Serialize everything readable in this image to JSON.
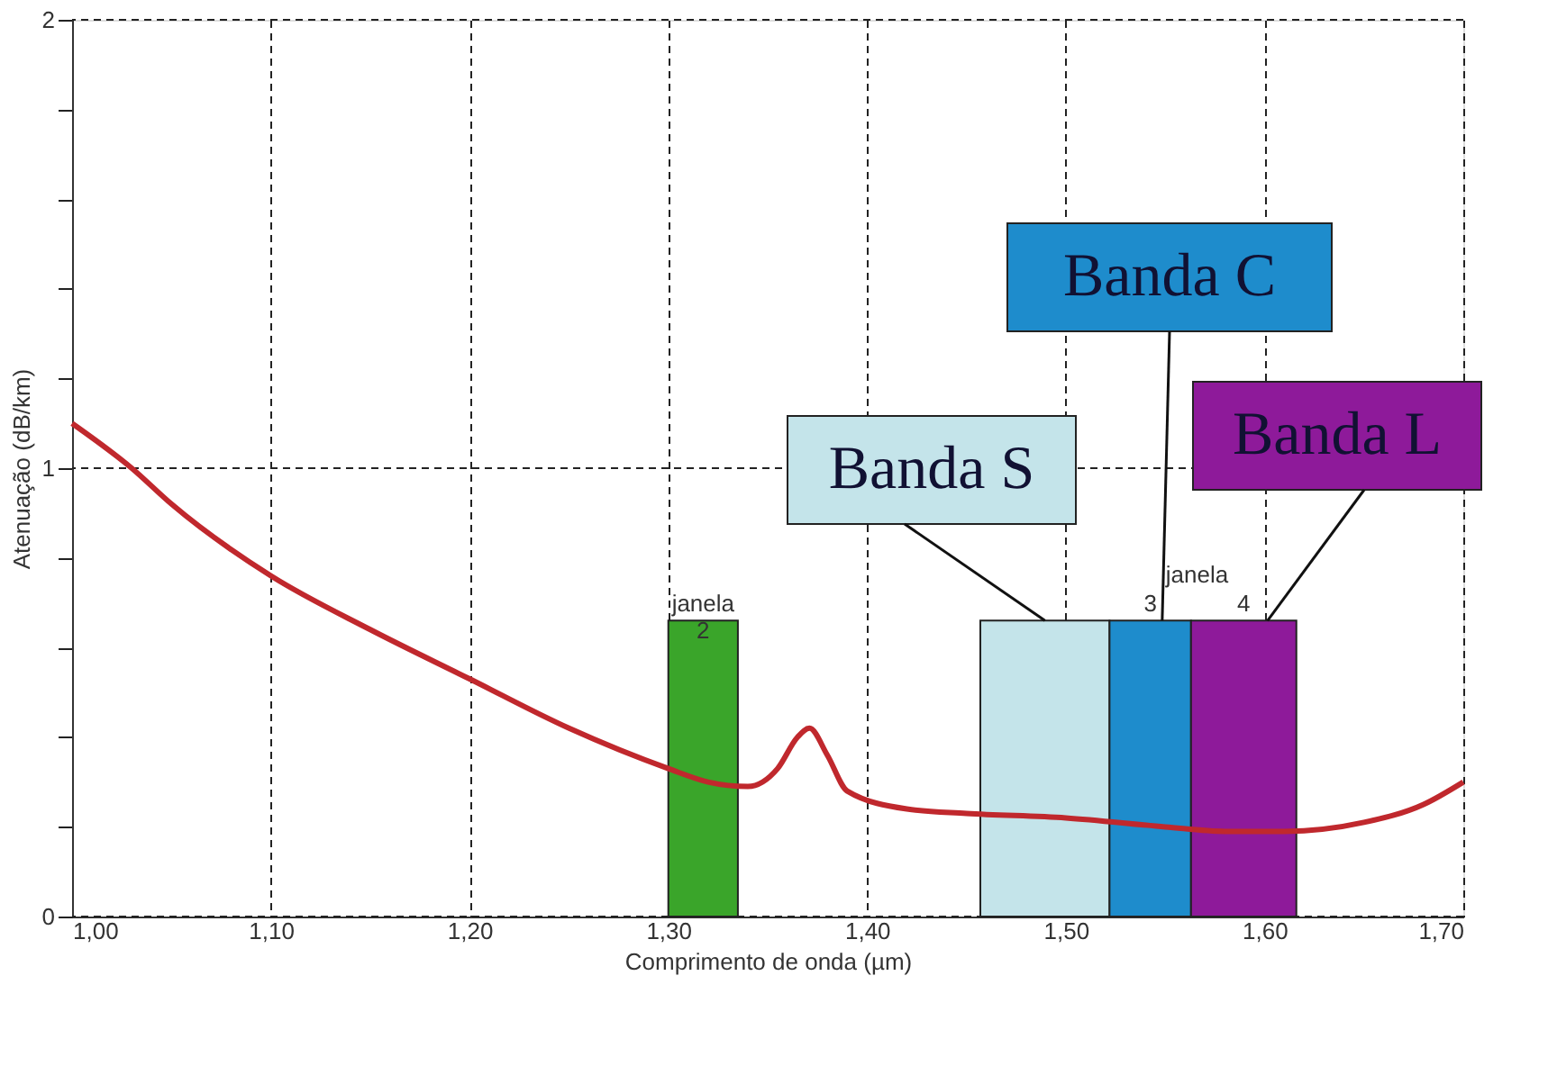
{
  "chart_data": {
    "type": "line",
    "xlabel": "Comprimento de onda (µm)",
    "ylabel": "Atenuação (dB/km)",
    "x": [
      1.0,
      1.03,
      1.05,
      1.1,
      1.15,
      1.2,
      1.25,
      1.3,
      1.32,
      1.34,
      1.355,
      1.365,
      1.371,
      1.38,
      1.39,
      1.42,
      1.45,
      1.5,
      1.55,
      1.58,
      1.61,
      1.65,
      1.68,
      1.7
    ],
    "series": [
      {
        "color": "#c0282d",
        "values": [
          1.1,
          1.0,
          0.92,
          0.76,
          0.64,
          0.53,
          0.42,
          0.33,
          0.3,
          0.29,
          0.33,
          0.4,
          0.42,
          0.36,
          0.28,
          0.24,
          0.23,
          0.22,
          0.2,
          0.19,
          0.19,
          0.21,
          0.25,
          0.3
        ]
      }
    ],
    "xlim": [
      1.0,
      1.7
    ],
    "xticks": [
      {
        "value": 1.0,
        "label": "1,00"
      },
      {
        "value": 1.1,
        "label": "1,10"
      },
      {
        "value": 1.2,
        "label": "1,20"
      },
      {
        "value": 1.3,
        "label": "1,30"
      },
      {
        "value": 1.4,
        "label": "1,40"
      },
      {
        "value": 1.5,
        "label": "1,50"
      },
      {
        "value": 1.6,
        "label": "1,60"
      },
      {
        "value": 1.7,
        "label": "1,70"
      }
    ],
    "ylim": [
      0,
      2
    ],
    "yticks": [
      0,
      {
        "value": 0.2,
        "label": null
      },
      {
        "value": 0.4,
        "label": null
      },
      {
        "value": 0.6,
        "label": null
      },
      {
        "value": 0.8,
        "label": null
      },
      1,
      {
        "value": 1.2,
        "label": null
      },
      {
        "value": 1.4,
        "label": null
      },
      {
        "value": 1.6,
        "label": null
      },
      {
        "value": 1.8,
        "label": null
      },
      2
    ],
    "grid": true,
    "line_style": "solid",
    "bands": [
      {
        "axis": "x",
        "from": 1.3,
        "to": 1.335,
        "label": "janela 2",
        "color": "#3aa52a"
      },
      {
        "axis": "x",
        "from": 1.457,
        "to": 1.522,
        "label": "Banda S",
        "color": "#c4e4ea"
      },
      {
        "axis": "x",
        "from": 1.522,
        "to": 1.563,
        "label": "Banda C",
        "color": "#1e8ccc"
      },
      {
        "axis": "x",
        "from": 1.563,
        "to": 1.616,
        "label": "Banda L",
        "color": "#8e1a9a"
      }
    ],
    "annotations": [
      "janela",
      "3",
      "4"
    ]
  }
}
